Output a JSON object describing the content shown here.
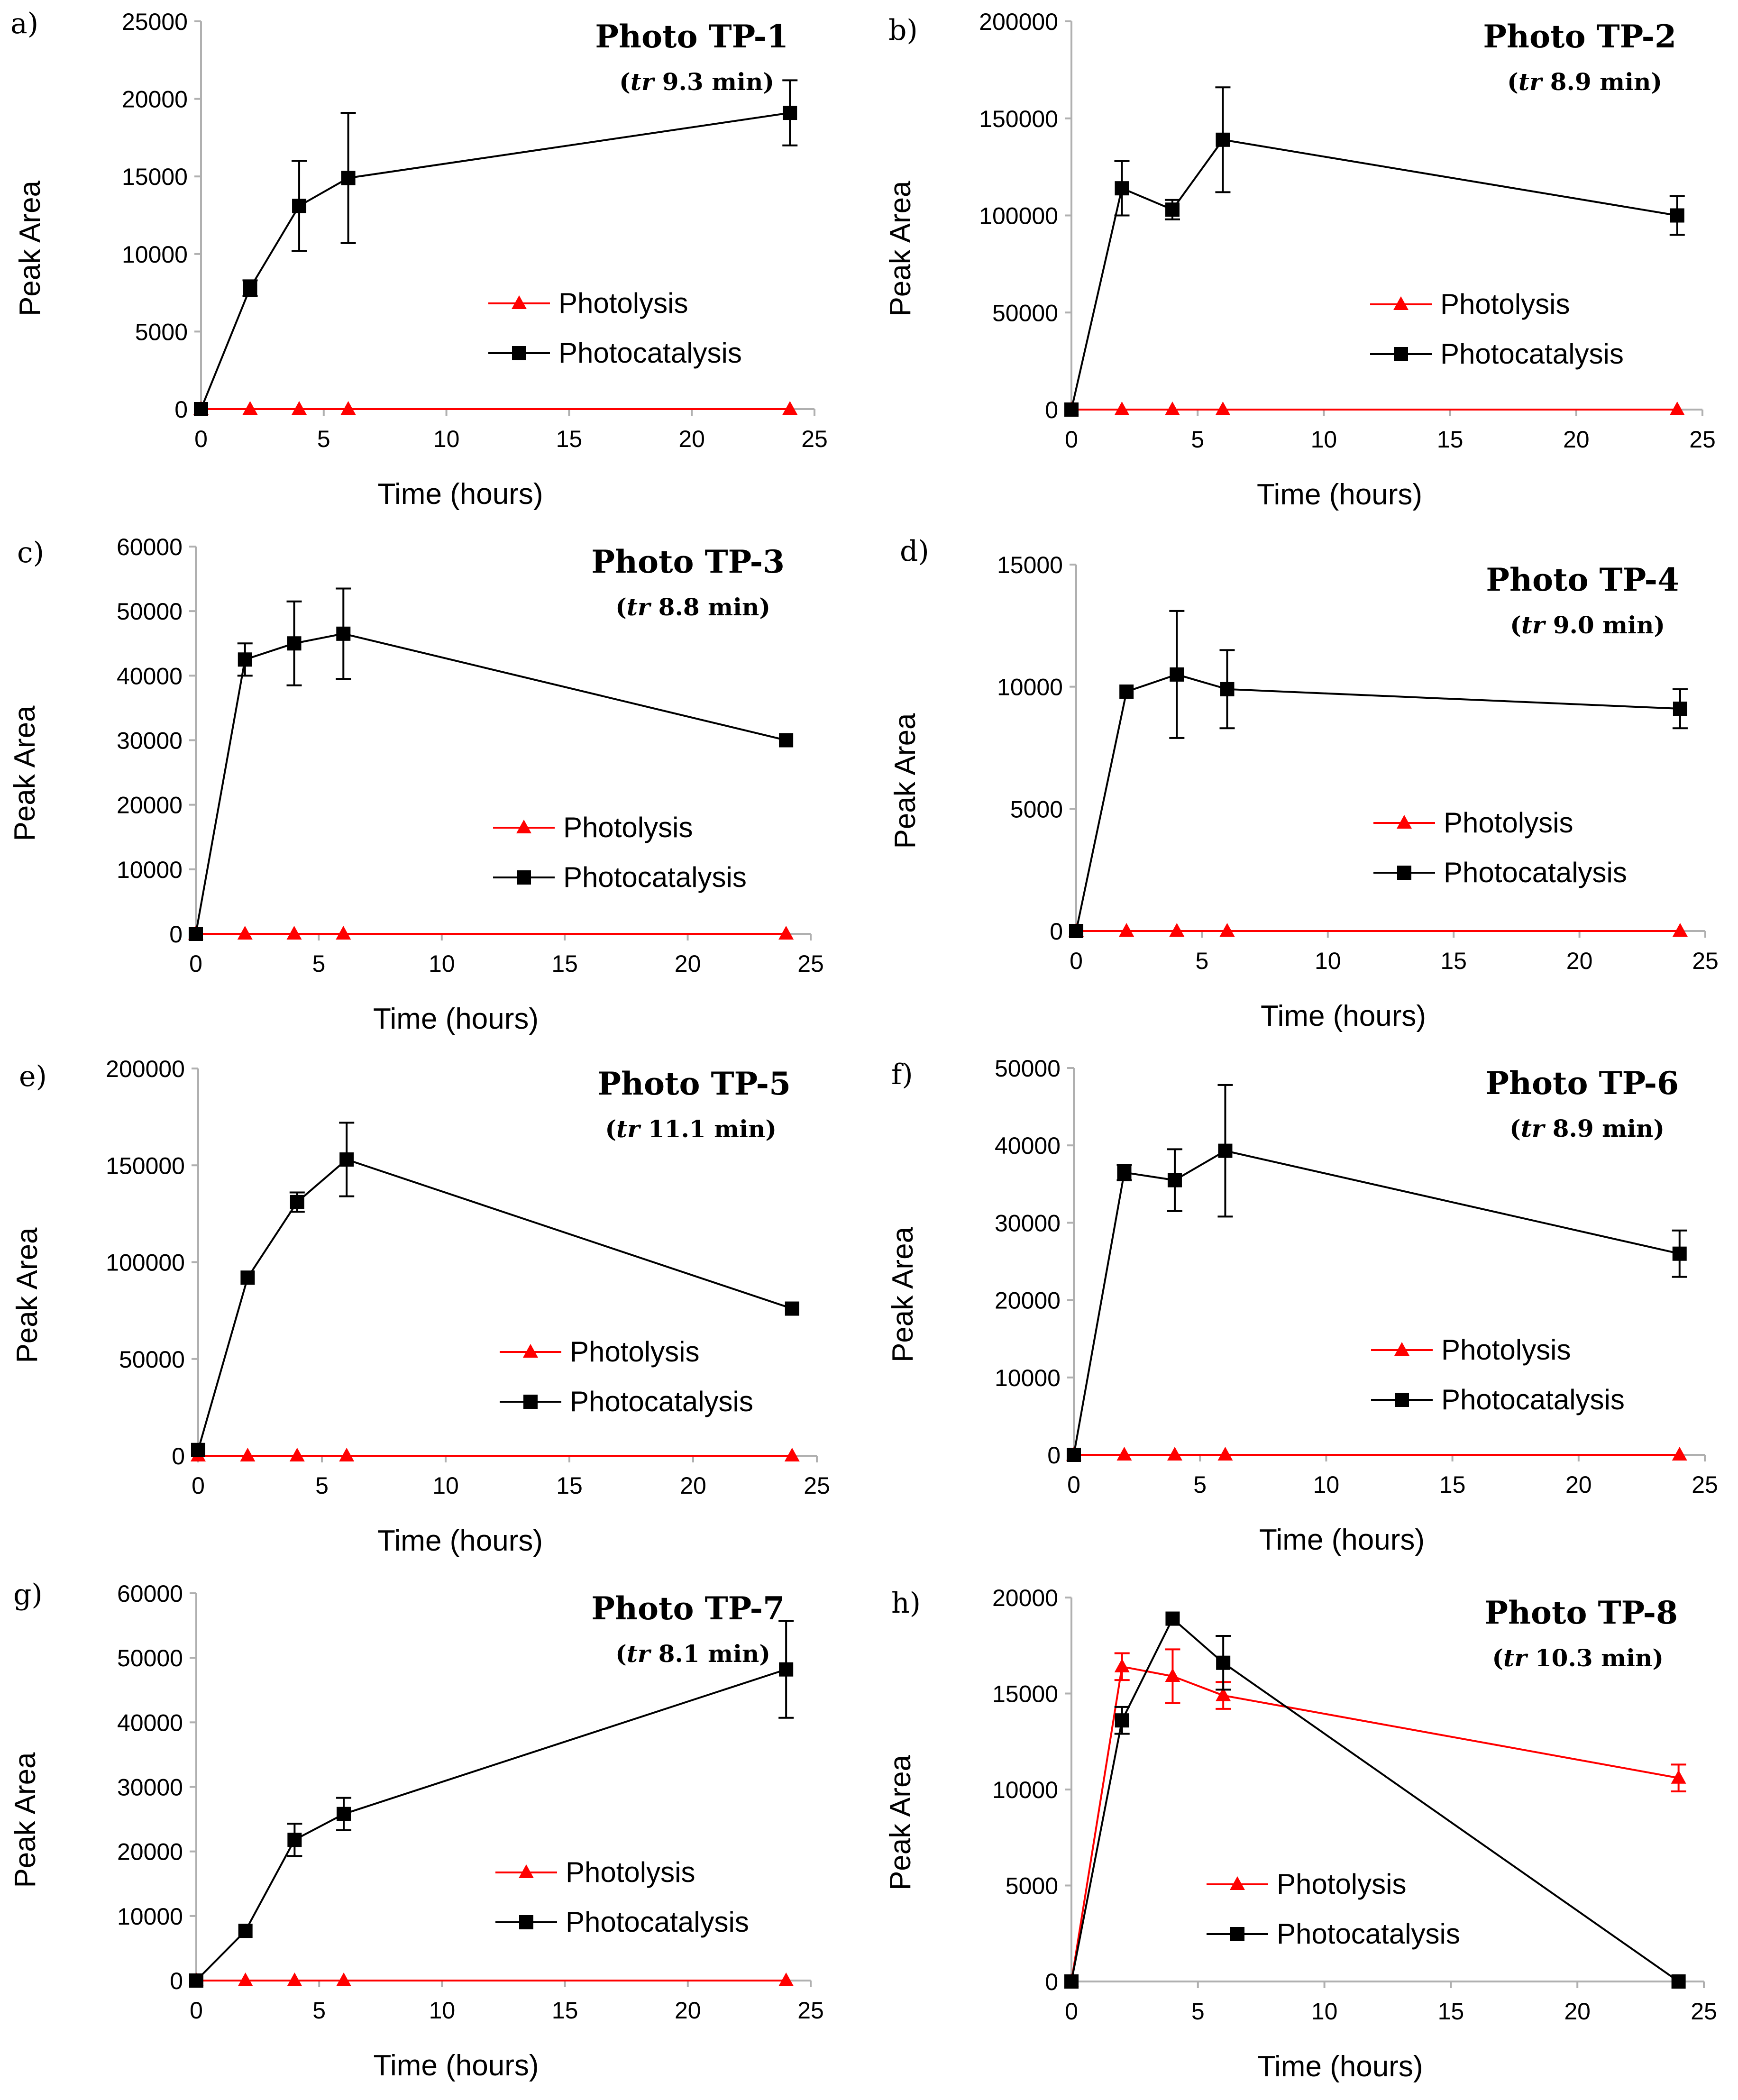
{
  "figure_caption": "",
  "chart_data": [
    {
      "panel_label": "a)",
      "type": "line",
      "title": "Photo TP-1",
      "subtitle_prefix": "tr",
      "subtitle_value": "9.3 min",
      "xlabel": "Time (hours)",
      "ylabel": "Peak Area",
      "xlim": [
        0,
        25
      ],
      "ylim": [
        0,
        25000
      ],
      "xticks": [
        0,
        5,
        10,
        15,
        20,
        25
      ],
      "yticks": [
        0,
        5000,
        10000,
        15000,
        20000,
        25000
      ],
      "x": [
        0,
        2,
        4,
        6,
        24
      ],
      "series": [
        {
          "name": "Photolysis",
          "color": "#ff0000",
          "marker": "triangle",
          "values": [
            0,
            0,
            0,
            0,
            0
          ],
          "errors": [
            0,
            0,
            0,
            0,
            0
          ]
        },
        {
          "name": "Photocatalysis",
          "color": "#000000",
          "marker": "square",
          "values": [
            0,
            7800,
            13100,
            14900,
            19100
          ],
          "errors": [
            0,
            500,
            2900,
            4200,
            2100
          ]
        }
      ]
    },
    {
      "panel_label": "b)",
      "type": "line",
      "title": "Photo TP-2",
      "subtitle_prefix": "tr",
      "subtitle_value": "8.9 min",
      "xlabel": "Time (hours)",
      "ylabel": "Peak Area",
      "xlim": [
        0,
        25
      ],
      "ylim": [
        0,
        200000
      ],
      "xticks": [
        0,
        5,
        10,
        15,
        20,
        25
      ],
      "yticks": [
        0,
        50000,
        100000,
        150000,
        200000
      ],
      "x": [
        0,
        2,
        4,
        6,
        24
      ],
      "series": [
        {
          "name": "Photolysis",
          "color": "#ff0000",
          "marker": "triangle",
          "values": [
            0,
            0,
            0,
            0,
            0
          ],
          "errors": [
            0,
            0,
            0,
            0,
            0
          ]
        },
        {
          "name": "Photocatalysis",
          "color": "#000000",
          "marker": "square",
          "values": [
            0,
            114000,
            103000,
            139000,
            100000
          ],
          "errors": [
            0,
            14000,
            5000,
            27000,
            10000
          ]
        }
      ]
    },
    {
      "panel_label": "c)",
      "type": "line",
      "title": "Photo TP-3",
      "subtitle_prefix": "tr",
      "subtitle_value": "8.8 min",
      "xlabel": "Time (hours)",
      "ylabel": "Peak Area",
      "xlim": [
        0,
        25
      ],
      "ylim": [
        0,
        60000
      ],
      "xticks": [
        0,
        5,
        10,
        15,
        20,
        25
      ],
      "yticks": [
        0,
        10000,
        20000,
        30000,
        40000,
        50000,
        60000
      ],
      "x": [
        0,
        2,
        4,
        6,
        24
      ],
      "series": [
        {
          "name": "Photolysis",
          "color": "#ff0000",
          "marker": "triangle",
          "values": [
            0,
            0,
            0,
            0,
            0
          ],
          "errors": [
            0,
            0,
            0,
            0,
            0
          ]
        },
        {
          "name": "Photocatalysis",
          "color": "#000000",
          "marker": "square",
          "values": [
            0,
            42500,
            45000,
            46500,
            30000
          ],
          "errors": [
            0,
            2500,
            6500,
            7000,
            0
          ]
        }
      ]
    },
    {
      "panel_label": "d)",
      "type": "line",
      "title": "Photo TP-4",
      "subtitle_prefix": "tr",
      "subtitle_value": "9.0 min",
      "xlabel": "Time (hours)",
      "ylabel": "Peak Area",
      "xlim": [
        0,
        25
      ],
      "ylim": [
        0,
        15000
      ],
      "xticks": [
        0,
        5,
        10,
        15,
        20,
        25
      ],
      "yticks": [
        0,
        5000,
        10000,
        15000
      ],
      "x": [
        0,
        2,
        4,
        6,
        24
      ],
      "series": [
        {
          "name": "Photolysis",
          "color": "#ff0000",
          "marker": "triangle",
          "values": [
            0,
            0,
            0,
            0,
            0
          ],
          "errors": [
            0,
            0,
            0,
            0,
            0
          ]
        },
        {
          "name": "Photocatalysis",
          "color": "#000000",
          "marker": "square",
          "values": [
            0,
            9800,
            10500,
            9900,
            9100
          ],
          "errors": [
            0,
            0,
            2600,
            1600,
            800
          ]
        }
      ]
    },
    {
      "panel_label": "e)",
      "type": "line",
      "title": "Photo TP-5",
      "subtitle_prefix": "tr",
      "subtitle_value": "11.1 min",
      "xlabel": "Time (hours)",
      "ylabel": "Peak Area",
      "xlim": [
        0,
        25
      ],
      "ylim": [
        0,
        200000
      ],
      "xticks": [
        0,
        5,
        10,
        15,
        20,
        25
      ],
      "yticks": [
        0,
        50000,
        100000,
        150000,
        200000
      ],
      "x": [
        0,
        2,
        4,
        6,
        24
      ],
      "series": [
        {
          "name": "Photolysis",
          "color": "#ff0000",
          "marker": "triangle",
          "values": [
            0,
            0,
            0,
            0,
            0
          ],
          "errors": [
            0,
            0,
            0,
            0,
            0
          ]
        },
        {
          "name": "Photocatalysis",
          "color": "#000000",
          "marker": "square",
          "values": [
            3000,
            92000,
            131000,
            153000,
            76000
          ],
          "errors": [
            0,
            0,
            5000,
            19000,
            0
          ]
        }
      ]
    },
    {
      "panel_label": "f)",
      "type": "line",
      "title": "Photo TP-6",
      "subtitle_prefix": "tr",
      "subtitle_value": "8.9 min",
      "xlabel": "Time (hours)",
      "ylabel": "Peak Area",
      "xlim": [
        0,
        25
      ],
      "ylim": [
        0,
        50000
      ],
      "xticks": [
        0,
        5,
        10,
        15,
        20,
        25
      ],
      "yticks": [
        0,
        10000,
        20000,
        30000,
        40000,
        50000
      ],
      "x": [
        0,
        2,
        4,
        6,
        24
      ],
      "series": [
        {
          "name": "Photolysis",
          "color": "#ff0000",
          "marker": "triangle",
          "values": [
            0,
            0,
            0,
            0,
            0
          ],
          "errors": [
            0,
            0,
            0,
            0,
            0
          ]
        },
        {
          "name": "Photocatalysis",
          "color": "#000000",
          "marker": "square",
          "values": [
            0,
            36500,
            35500,
            39300,
            26000
          ],
          "errors": [
            0,
            1000,
            4000,
            8500,
            3000
          ]
        }
      ]
    },
    {
      "panel_label": "g)",
      "type": "line",
      "title": "Photo TP-7",
      "subtitle_prefix": "tr",
      "subtitle_value": "8.1 min",
      "xlabel": "Time (hours)",
      "ylabel": "Peak Area",
      "xlim": [
        0,
        25
      ],
      "ylim": [
        0,
        60000
      ],
      "xticks": [
        0,
        5,
        10,
        15,
        20,
        25
      ],
      "yticks": [
        0,
        10000,
        20000,
        30000,
        40000,
        50000,
        60000
      ],
      "x": [
        0,
        2,
        4,
        6,
        24
      ],
      "series": [
        {
          "name": "Photolysis",
          "color": "#ff0000",
          "marker": "triangle",
          "values": [
            0,
            0,
            0,
            0,
            0
          ],
          "errors": [
            0,
            0,
            0,
            0,
            0
          ]
        },
        {
          "name": "Photocatalysis",
          "color": "#000000",
          "marker": "square",
          "values": [
            0,
            7700,
            21800,
            25800,
            48200
          ],
          "errors": [
            0,
            0,
            2500,
            2500,
            7500
          ]
        }
      ]
    },
    {
      "panel_label": "h)",
      "type": "line",
      "title": "Photo TP-8",
      "subtitle_prefix": "tr",
      "subtitle_value": "10.3 min",
      "xlabel": "Time (hours)",
      "ylabel": "Peak Area",
      "xlim": [
        0,
        25
      ],
      "ylim": [
        0,
        20000
      ],
      "xticks": [
        0,
        5,
        10,
        15,
        20,
        25
      ],
      "yticks": [
        0,
        5000,
        10000,
        15000,
        20000
      ],
      "x": [
        0,
        2,
        4,
        6,
        24
      ],
      "series": [
        {
          "name": "Photolysis",
          "color": "#ff0000",
          "marker": "triangle",
          "values": [
            0,
            16400,
            15900,
            14900,
            10600
          ],
          "errors": [
            0,
            700,
            1400,
            700,
            700
          ]
        },
        {
          "name": "Photocatalysis",
          "color": "#000000",
          "marker": "square",
          "values": [
            0,
            13600,
            18900,
            16600,
            0
          ],
          "errors": [
            0,
            700,
            0,
            1400,
            0
          ]
        }
      ]
    }
  ]
}
